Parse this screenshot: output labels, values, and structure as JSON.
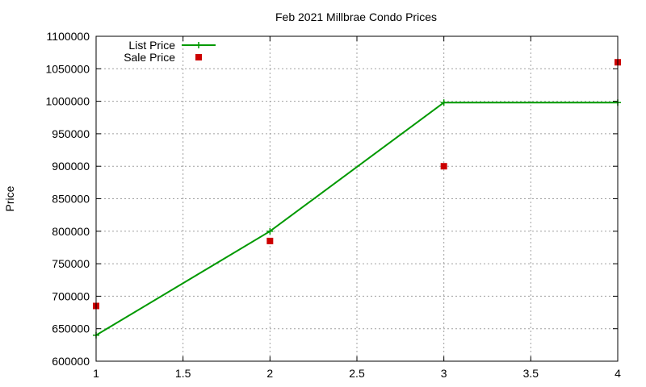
{
  "chart_data": {
    "type": "line",
    "title": "Feb 2021 Millbrae Condo Prices",
    "xlabel": "",
    "ylabel": "Price",
    "xlim": [
      1,
      4
    ],
    "ylim": [
      600000,
      1100000
    ],
    "xticks": [
      1,
      1.5,
      2,
      2.5,
      3,
      3.5,
      4
    ],
    "xtick_labels": [
      "1",
      "1.5",
      "2",
      "2.5",
      "3",
      "3.5",
      "4"
    ],
    "yticks": [
      600000,
      650000,
      700000,
      750000,
      800000,
      850000,
      900000,
      950000,
      1000000,
      1050000,
      1100000
    ],
    "ytick_labels": [
      "600000",
      "650000",
      "700000",
      "750000",
      "800000",
      "850000",
      "900000",
      "950000",
      "1000000",
      "1050000",
      "1100000"
    ],
    "grid": true,
    "legend_position": "top-left",
    "series": [
      {
        "name": "List Price",
        "style": "line-with-plus-markers",
        "color": "#009900",
        "x": [
          1,
          2,
          3,
          4
        ],
        "y": [
          640000,
          800000,
          998000,
          998000
        ]
      },
      {
        "name": "Sale Price",
        "style": "square-markers",
        "color": "#cc0000",
        "x": [
          1,
          2,
          3,
          4
        ],
        "y": [
          685000,
          785000,
          900000,
          1060000
        ]
      }
    ]
  }
}
